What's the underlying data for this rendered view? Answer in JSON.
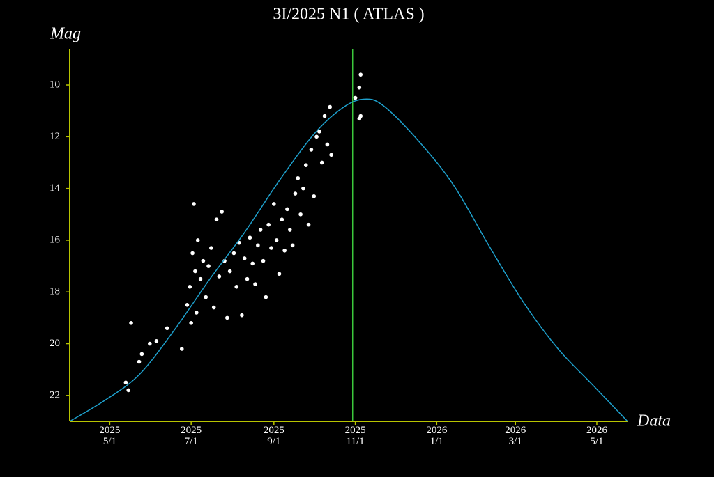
{
  "chart_data": {
    "type": "scatter",
    "title": "3I/2025 N1 ( ATLAS )",
    "y_label": "Mag",
    "x_label": "Data",
    "xlim": [
      "2025-04-01",
      "2026-05-24"
    ],
    "ylim": [
      23,
      8.6
    ],
    "axis_color": "#b8c400",
    "xticks": [
      {
        "value": "2025-05-01",
        "label": "2025\n5/1"
      },
      {
        "value": "2025-07-01",
        "label": "2025\n7/1"
      },
      {
        "value": "2025-09-01",
        "label": "2025\n9/1"
      },
      {
        "value": "2025-11-01",
        "label": "2025\n11/1"
      },
      {
        "value": "2026-01-01",
        "label": "2026\n1/1"
      },
      {
        "value": "2026-03-01",
        "label": "2026\n3/1"
      },
      {
        "value": "2026-05-01",
        "label": "2026\n5/1"
      }
    ],
    "yticks": [
      10,
      12,
      14,
      16,
      18,
      20,
      22
    ],
    "vline": {
      "x": "2025-10-30",
      "color": "#3cc83c"
    },
    "series": [
      {
        "type": "scatter",
        "color": "#ffffff",
        "x": [
          "2025-05-17",
          "2025-05-13",
          "2025-05-15",
          "2025-05-23",
          "2025-05-25",
          "2025-05-31",
          "2025-06-05",
          "2025-06-13",
          "2025-06-24",
          "2025-06-28",
          "2025-06-30",
          "2025-07-01",
          "2025-07-02",
          "2025-07-03",
          "2025-07-04",
          "2025-07-05",
          "2025-07-06",
          "2025-07-08",
          "2025-07-10",
          "2025-07-12",
          "2025-07-14",
          "2025-07-16",
          "2025-07-18",
          "2025-07-20",
          "2025-07-22",
          "2025-07-24",
          "2025-07-26",
          "2025-07-28",
          "2025-07-30",
          "2025-08-02",
          "2025-08-04",
          "2025-08-06",
          "2025-08-08",
          "2025-08-10",
          "2025-08-12",
          "2025-08-14",
          "2025-08-16",
          "2025-08-18",
          "2025-08-20",
          "2025-08-22",
          "2025-08-24",
          "2025-08-26",
          "2025-08-28",
          "2025-08-30",
          "2025-09-01",
          "2025-09-03",
          "2025-09-05",
          "2025-09-07",
          "2025-09-09",
          "2025-09-11",
          "2025-09-13",
          "2025-09-15",
          "2025-09-17",
          "2025-09-19",
          "2025-09-21",
          "2025-09-23",
          "2025-09-25",
          "2025-09-27",
          "2025-09-29",
          "2025-10-01",
          "2025-10-03",
          "2025-10-05",
          "2025-10-07",
          "2025-10-09",
          "2025-10-11",
          "2025-10-13",
          "2025-10-14",
          "2025-11-01",
          "2025-11-04",
          "2025-11-05",
          "2025-11-04",
          "2025-11-05"
        ],
        "values": [
          19.2,
          21.5,
          21.8,
          20.7,
          20.4,
          20.0,
          19.9,
          19.4,
          20.2,
          18.5,
          17.8,
          19.2,
          16.5,
          14.6,
          17.2,
          18.8,
          16.0,
          17.5,
          16.8,
          18.2,
          17.0,
          16.3,
          18.6,
          15.2,
          17.4,
          14.9,
          16.8,
          19.0,
          17.2,
          16.5,
          17.8,
          16.1,
          18.9,
          16.7,
          17.5,
          15.9,
          16.9,
          17.7,
          16.2,
          15.6,
          16.8,
          18.2,
          15.4,
          16.3,
          14.6,
          16.0,
          17.3,
          15.2,
          16.4,
          14.8,
          15.6,
          16.2,
          14.2,
          13.6,
          15.0,
          14.0,
          13.1,
          15.4,
          12.5,
          14.3,
          12.0,
          11.8,
          13.0,
          11.2,
          12.3,
          10.85,
          12.7,
          10.5,
          10.1,
          9.6,
          11.3,
          11.2
        ]
      },
      {
        "type": "line",
        "color": "#1ea0cc",
        "x": [
          "2025-04-01",
          "2025-04-27",
          "2025-05-23",
          "2025-06-18",
          "2025-07-15",
          "2025-08-10",
          "2025-09-05",
          "2025-10-01",
          "2025-10-22",
          "2025-11-07",
          "2025-11-22",
          "2025-12-19",
          "2026-01-14",
          "2026-02-09",
          "2026-03-07",
          "2026-04-02",
          "2026-04-28",
          "2026-05-24"
        ],
        "values": [
          23.0,
          22.2,
          21.2,
          19.5,
          17.5,
          15.7,
          13.7,
          11.9,
          10.9,
          10.55,
          10.8,
          12.2,
          13.9,
          16.2,
          18.4,
          20.2,
          21.6,
          23.0
        ]
      }
    ]
  }
}
